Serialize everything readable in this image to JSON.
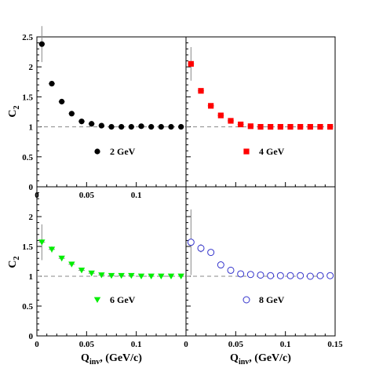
{
  "chart_data": [
    {
      "panel": "top-left",
      "type": "scatter",
      "marker": "filled-circle",
      "color": "#000000",
      "legend": "2 GeV",
      "legend_position": "bottom-center",
      "x": [
        0.005,
        0.015,
        0.025,
        0.035,
        0.045,
        0.055,
        0.065,
        0.075,
        0.085,
        0.095,
        0.105,
        0.115,
        0.125,
        0.135,
        0.145
      ],
      "y": [
        2.38,
        1.72,
        1.42,
        1.22,
        1.09,
        1.05,
        1.02,
        1.0,
        1.0,
        1.0,
        1.01,
        1.0,
        1.0,
        1.0,
        1.0
      ],
      "yerr": [
        0.3,
        0.03,
        0.02,
        0.015,
        0.01,
        0.01,
        0.01,
        0.01,
        0.01,
        0.01,
        0.01,
        0.01,
        0.01,
        0.01,
        0.01
      ],
      "xlim": [
        0,
        0.15
      ],
      "ylim": [
        0,
        2.5
      ],
      "ylabel": "C",
      "ylabel_sub": "2",
      "xticks": [
        "0",
        "0.05",
        "0.1"
      ],
      "yticks": [
        "0",
        "0.5",
        "1",
        "1.5",
        "2",
        "2.5"
      ],
      "reference_line": 1
    },
    {
      "panel": "top-right",
      "type": "scatter",
      "marker": "filled-square",
      "color": "#ff0000",
      "legend": "4 GeV",
      "legend_position": "bottom-center",
      "x": [
        0.005,
        0.015,
        0.025,
        0.035,
        0.045,
        0.055,
        0.065,
        0.075,
        0.085,
        0.095,
        0.105,
        0.115,
        0.125,
        0.135,
        0.145
      ],
      "y": [
        2.05,
        1.6,
        1.35,
        1.19,
        1.1,
        1.04,
        1.01,
        1.0,
        1.0,
        1.0,
        1.0,
        1.0,
        1.0,
        1.0,
        1.0
      ],
      "yerr": [
        0.28,
        0.04,
        0.03,
        0.02,
        0.02,
        0.015,
        0.01,
        0.01,
        0.01,
        0.01,
        0.01,
        0.01,
        0.01,
        0.01,
        0.01
      ],
      "xlim": [
        0,
        0.15
      ],
      "ylim": [
        0,
        2.5
      ],
      "reference_line": 1
    },
    {
      "panel": "bottom-left",
      "type": "scatter",
      "marker": "filled-triangle-down",
      "color": "#00ee00",
      "legend": "6 GeV",
      "legend_position": "bottom-center",
      "x": [
        0.005,
        0.015,
        0.025,
        0.035,
        0.045,
        0.055,
        0.065,
        0.075,
        0.085,
        0.095,
        0.105,
        0.115,
        0.125,
        0.135,
        0.145
      ],
      "y": [
        1.57,
        1.45,
        1.3,
        1.2,
        1.1,
        1.05,
        1.02,
        1.01,
        1.01,
        1.01,
        1.0,
        1.0,
        1.0,
        1.0,
        1.0
      ],
      "yerr": [
        0.3,
        0.05,
        0.04,
        0.03,
        0.02,
        0.02,
        0.015,
        0.01,
        0.01,
        0.01,
        0.01,
        0.01,
        0.01,
        0.01,
        0.01
      ],
      "xlim": [
        0,
        0.15
      ],
      "ylim": [
        0,
        2.5
      ],
      "xlabel": "Q",
      "xlabel_sub": "inv",
      "xlabel_suffix": ", (GeV/c)",
      "ylabel": "C",
      "ylabel_sub": "2",
      "xticks": [
        "0",
        "0.05",
        "0.1"
      ],
      "yticks": [
        "0",
        "0.5",
        "1",
        "1.5",
        "2"
      ],
      "reference_line": 1
    },
    {
      "panel": "bottom-right",
      "type": "scatter",
      "marker": "open-circle",
      "color": "#3333cc",
      "legend": "8 GeV",
      "legend_position": "bottom-center",
      "x": [
        0.005,
        0.015,
        0.025,
        0.035,
        0.045,
        0.055,
        0.065,
        0.075,
        0.085,
        0.095,
        0.105,
        0.115,
        0.125,
        0.135,
        0.145
      ],
      "y": [
        1.57,
        1.47,
        1.4,
        1.19,
        1.1,
        1.04,
        1.03,
        1.02,
        1.01,
        1.01,
        1.01,
        1.01,
        1.0,
        1.01,
        1.01
      ],
      "yerr": [
        0.55,
        0.07,
        0.05,
        0.04,
        0.03,
        0.02,
        0.02,
        0.015,
        0.01,
        0.01,
        0.01,
        0.01,
        0.01,
        0.01,
        0.01
      ],
      "xlim": [
        0,
        0.15
      ],
      "ylim": [
        0,
        2.5
      ],
      "xlabel": "Q",
      "xlabel_sub": "inv",
      "xlabel_suffix": ", (GeV/c)",
      "xticks": [
        "0",
        "0.05",
        "0.1",
        "0.15"
      ],
      "reference_line": 1
    }
  ]
}
